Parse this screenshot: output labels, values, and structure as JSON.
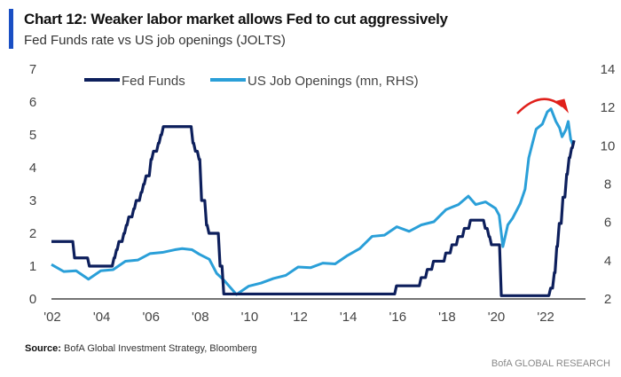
{
  "chart_data": {
    "type": "line",
    "title": "Chart 12: Weaker labor market allows Fed to cut aggressively",
    "subtitle": "Fed Funds rate vs US job openings (JOLTS)",
    "xlabel": "",
    "ylabel": "",
    "x_ticks": [
      "'02",
      "'04",
      "'06",
      "'08",
      "'10",
      "'12",
      "'14",
      "'16",
      "'18",
      "'20",
      "'22"
    ],
    "x_tick_years": [
      2002,
      2004,
      2006,
      2008,
      2010,
      2012,
      2014,
      2016,
      2018,
      2020,
      2022
    ],
    "xlim": [
      2002,
      2023.65
    ],
    "y_left": {
      "ticks": [
        "0",
        "1",
        "2",
        "3",
        "4",
        "5",
        "6",
        "7"
      ],
      "lim": [
        0,
        7
      ]
    },
    "y_right": {
      "ticks": [
        "2",
        "4",
        "6",
        "8",
        "10",
        "12",
        "14"
      ],
      "lim": [
        2,
        14
      ]
    },
    "grid": false,
    "legend_position": "top",
    "series": [
      {
        "name": "Fed Funds",
        "axis": "left",
        "color": "#0d1f5c",
        "step": true,
        "points": [
          [
            2002,
            1.75
          ],
          [
            2002.9,
            1.25
          ],
          [
            2003.5,
            1.0
          ],
          [
            2004.5,
            1.25
          ],
          [
            2004.6,
            1.5
          ],
          [
            2004.7,
            1.75
          ],
          [
            2004.9,
            2.0
          ],
          [
            2005.0,
            2.25
          ],
          [
            2005.1,
            2.5
          ],
          [
            2005.3,
            2.75
          ],
          [
            2005.4,
            3.0
          ],
          [
            2005.6,
            3.25
          ],
          [
            2005.7,
            3.5
          ],
          [
            2005.8,
            3.75
          ],
          [
            2006.0,
            4.25
          ],
          [
            2006.1,
            4.5
          ],
          [
            2006.3,
            4.75
          ],
          [
            2006.4,
            5.0
          ],
          [
            2006.5,
            5.25
          ],
          [
            2007.7,
            4.75
          ],
          [
            2007.8,
            4.5
          ],
          [
            2007.95,
            4.25
          ],
          [
            2008.05,
            3.0
          ],
          [
            2008.25,
            2.25
          ],
          [
            2008.35,
            2.0
          ],
          [
            2008.8,
            1.0
          ],
          [
            2008.95,
            0.15
          ],
          [
            2015.95,
            0.4
          ],
          [
            2016.95,
            0.65
          ],
          [
            2017.2,
            0.9
          ],
          [
            2017.45,
            1.15
          ],
          [
            2017.95,
            1.4
          ],
          [
            2018.2,
            1.65
          ],
          [
            2018.45,
            1.9
          ],
          [
            2018.7,
            2.15
          ],
          [
            2018.95,
            2.4
          ],
          [
            2019.55,
            2.15
          ],
          [
            2019.7,
            1.9
          ],
          [
            2019.8,
            1.65
          ],
          [
            2020.2,
            0.1
          ],
          [
            2022.2,
            0.33
          ],
          [
            2022.35,
            0.8
          ],
          [
            2022.45,
            1.6
          ],
          [
            2022.55,
            2.3
          ],
          [
            2022.7,
            3.1
          ],
          [
            2022.85,
            3.8
          ],
          [
            2022.95,
            4.3
          ],
          [
            2023.05,
            4.6
          ],
          [
            2023.15,
            4.83
          ]
        ]
      },
      {
        "name": "US Job Openings (mn, RHS)",
        "axis": "right",
        "color": "#2a9fd8",
        "points": [
          [
            2002,
            3.8
          ],
          [
            2002.5,
            3.5
          ],
          [
            2003,
            3.4
          ],
          [
            2003.5,
            3.1
          ],
          [
            2004,
            3.4
          ],
          [
            2004.5,
            3.6
          ],
          [
            2005,
            3.9
          ],
          [
            2005.5,
            4.1
          ],
          [
            2006,
            4.3
          ],
          [
            2006.5,
            4.5
          ],
          [
            2007,
            4.5
          ],
          [
            2007.3,
            4.7
          ],
          [
            2007.7,
            4.5
          ],
          [
            2008,
            4.4
          ],
          [
            2008.4,
            4.0
          ],
          [
            2008.7,
            3.4
          ],
          [
            2009,
            2.9
          ],
          [
            2009.5,
            2.3
          ],
          [
            2010,
            2.6
          ],
          [
            2010.5,
            2.9
          ],
          [
            2011,
            3.0
          ],
          [
            2011.5,
            3.3
          ],
          [
            2012,
            3.6
          ],
          [
            2012.5,
            3.7
          ],
          [
            2013,
            3.8
          ],
          [
            2013.5,
            3.9
          ],
          [
            2014,
            4.2
          ],
          [
            2014.5,
            4.7
          ],
          [
            2015,
            5.2
          ],
          [
            2015.5,
            5.4
          ],
          [
            2016,
            5.7
          ],
          [
            2016.5,
            5.6
          ],
          [
            2017,
            5.8
          ],
          [
            2017.5,
            6.1
          ],
          [
            2018,
            6.6
          ],
          [
            2018.5,
            7.0
          ],
          [
            2018.9,
            7.3
          ],
          [
            2019.2,
            7.0
          ],
          [
            2019.6,
            7.0
          ],
          [
            2020.0,
            6.8
          ],
          [
            2020.15,
            6.3
          ],
          [
            2020.3,
            4.8
          ],
          [
            2020.5,
            5.8
          ],
          [
            2020.7,
            6.3
          ],
          [
            2021.0,
            6.9
          ],
          [
            2021.2,
            7.8
          ],
          [
            2021.35,
            9.3
          ],
          [
            2021.5,
            10.2
          ],
          [
            2021.65,
            10.8
          ],
          [
            2021.9,
            11.2
          ],
          [
            2022.1,
            11.7
          ],
          [
            2022.25,
            12.0
          ],
          [
            2022.45,
            11.2
          ],
          [
            2022.6,
            11.0
          ],
          [
            2022.7,
            10.4
          ],
          [
            2022.85,
            10.9
          ],
          [
            2022.95,
            11.2
          ],
          [
            2023.05,
            10.4
          ],
          [
            2023.15,
            10.0
          ]
        ]
      }
    ],
    "annotations": [
      {
        "type": "arrow",
        "color": "#e0201b",
        "meaning": "job openings rolling over"
      }
    ]
  },
  "header": {
    "title": "Chart 12: Weaker labor market allows Fed to cut aggressively",
    "subtitle": "Fed Funds rate vs US job openings (JOLTS)"
  },
  "legend": {
    "fed_funds": "Fed Funds",
    "job_openings": "US Job Openings (mn, RHS)"
  },
  "footer": {
    "source_label": "Source:",
    "source_text": "BofA Global Investment Strategy, Bloomberg",
    "brand": "BofA GLOBAL RESEARCH"
  },
  "colors": {
    "accent_bar": "#1a4fc4",
    "fed_funds": "#0d1f5c",
    "job_openings": "#2a9fd8",
    "arrow": "#e0201b"
  }
}
